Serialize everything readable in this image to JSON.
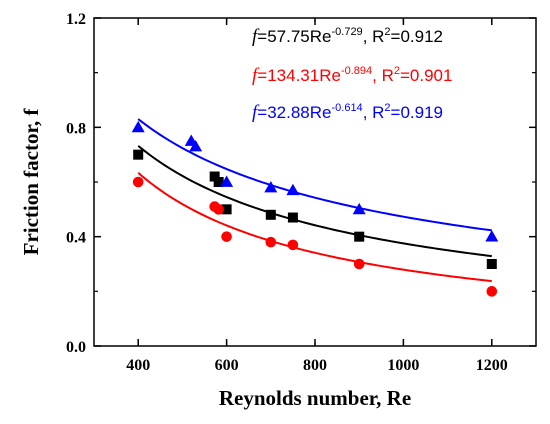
{
  "chart_data": {
    "type": "scatter",
    "xlabel": "Reynolds number, Re",
    "ylabel": "Friction factor, f",
    "xlim": [
      300,
      1300
    ],
    "ylim": [
      0.0,
      1.2
    ],
    "x_ticks": [
      400,
      600,
      800,
      1000,
      1200
    ],
    "x_tick_labels": [
      "400",
      "600",
      "800",
      "1000",
      "1200"
    ],
    "y_ticks": [
      0.0,
      0.4,
      0.8,
      1.2
    ],
    "y_tick_labels": [
      "0.0",
      "0.4",
      "0.8",
      "1.2"
    ],
    "series": [
      {
        "marker": "square",
        "color": "#000000",
        "points": [
          {
            "x": 400,
            "y": 0.7
          },
          {
            "x": 573,
            "y": 0.62
          },
          {
            "x": 582,
            "y": 0.6
          },
          {
            "x": 600,
            "y": 0.5
          },
          {
            "x": 700,
            "y": 0.48
          },
          {
            "x": 750,
            "y": 0.47
          },
          {
            "x": 900,
            "y": 0.4
          },
          {
            "x": 1200,
            "y": 0.3
          }
        ],
        "fit": {
          "coefficient": 57.75,
          "exponent": -0.729,
          "x_range": [
            400,
            1200
          ]
        },
        "equation": {
          "f": "f",
          "prefix": "=57.75Re",
          "exponent": "-0.729",
          "r2_prefix": ", R",
          "r2_sup": "2",
          "r2_suffix": "=0.912"
        }
      },
      {
        "marker": "circle",
        "color": "#ff0000",
        "points": [
          {
            "x": 400,
            "y": 0.6
          },
          {
            "x": 573,
            "y": 0.51
          },
          {
            "x": 582,
            "y": 0.5
          },
          {
            "x": 600,
            "y": 0.4
          },
          {
            "x": 700,
            "y": 0.38
          },
          {
            "x": 750,
            "y": 0.37
          },
          {
            "x": 900,
            "y": 0.3
          },
          {
            "x": 1200,
            "y": 0.2
          }
        ],
        "fit": {
          "coefficient": 134.31,
          "exponent": -0.894,
          "x_range": [
            400,
            1200
          ]
        },
        "equation": {
          "f": "f",
          "prefix": "=134.31Re",
          "exponent": "-0.894",
          "r2_prefix": ", R",
          "r2_sup": "2",
          "r2_suffix": "=0.901"
        }
      },
      {
        "marker": "triangle",
        "color": "#0000ff",
        "points": [
          {
            "x": 400,
            "y": 0.8
          },
          {
            "x": 520,
            "y": 0.75
          },
          {
            "x": 530,
            "y": 0.73
          },
          {
            "x": 600,
            "y": 0.6
          },
          {
            "x": 700,
            "y": 0.58
          },
          {
            "x": 750,
            "y": 0.57
          },
          {
            "x": 900,
            "y": 0.5
          },
          {
            "x": 1200,
            "y": 0.4
          }
        ],
        "fit": {
          "coefficient": 32.88,
          "exponent": -0.614,
          "x_range": [
            400,
            1200
          ]
        },
        "equation": {
          "f": "f",
          "prefix": "=32.88Re",
          "exponent": "-0.614",
          "r2_prefix": ", R",
          "r2_sup": "2",
          "r2_suffix": "=0.919"
        }
      }
    ]
  }
}
